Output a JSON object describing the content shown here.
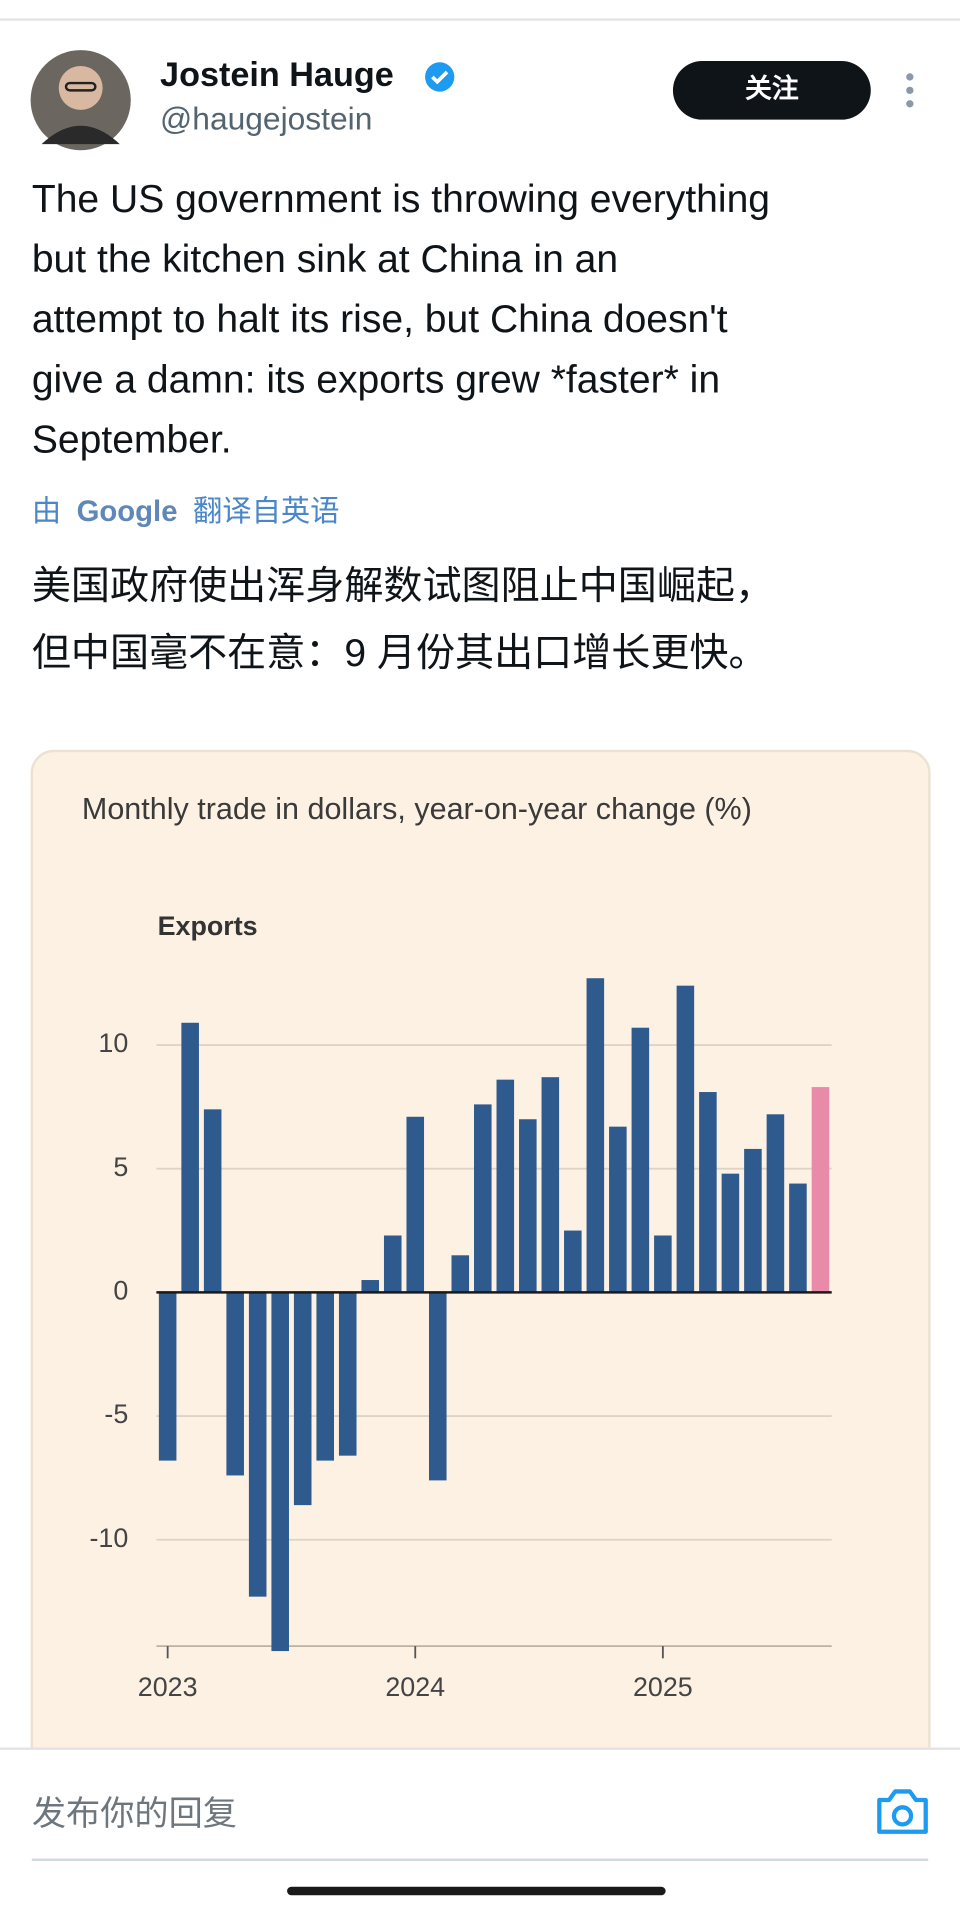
{
  "tweet": {
    "author_name": "Jostein Hauge",
    "handle": "@haugejostein",
    "follow_button": "关注",
    "text_lines": [
      "The US government is throwing everything",
      "but the kitchen sink at China in an",
      "attempt to halt its rise, but China doesn't",
      "give a damn: its exports grew *faster* in",
      "September."
    ],
    "translation_label": {
      "prefix": "由",
      "brand": "Google",
      "suffix": "翻译自英语"
    },
    "translated_lines": [
      "美国政府使出浑身解数试图阻止中国崛起，",
      "但中国毫不在意：9 月份其出口增长更快。"
    ]
  },
  "chart_data": {
    "type": "bar",
    "title": "Monthly trade in dollars, year-on-year change (%)",
    "categories": [
      "2023",
      null,
      null,
      null,
      null,
      null,
      null,
      null,
      null,
      null,
      null,
      "2024",
      null,
      null,
      null,
      null,
      null,
      null,
      null,
      null,
      null,
      null,
      "2025",
      null,
      null,
      null,
      null,
      null,
      null,
      null
    ],
    "series": [
      {
        "name": "Exports",
        "values": [
          -6.8,
          10.9,
          7.4,
          -7.4,
          -12.3,
          -14.5,
          -8.6,
          -6.8,
          -6.6,
          0.5,
          2.3,
          7.1,
          -7.6,
          1.5,
          7.6,
          8.6,
          7.0,
          8.7,
          2.5,
          12.7,
          6.7,
          10.7,
          2.3,
          12.4,
          8.1,
          4.8,
          5.8,
          7.2,
          4.4,
          8.3
        ],
        "colors": [
          "#2e5a8e",
          "#2e5a8e",
          "#2e5a8e",
          "#2e5a8e",
          "#2e5a8e",
          "#2e5a8e",
          "#2e5a8e",
          "#2e5a8e",
          "#2e5a8e",
          "#2e5a8e",
          "#2e5a8e",
          "#2e5a8e",
          "#2e5a8e",
          "#2e5a8e",
          "#2e5a8e",
          "#2e5a8e",
          "#2e5a8e",
          "#2e5a8e",
          "#2e5a8e",
          "#2e5a8e",
          "#2e5a8e",
          "#2e5a8e",
          "#2e5a8e",
          "#2e5a8e",
          "#2e5a8e",
          "#2e5a8e",
          "#2e5a8e",
          "#2e5a8e",
          "#2e5a8e",
          "#e98aa8"
        ]
      }
    ],
    "ylim": [
      -14.3,
      13
    ],
    "yticks": [
      -10,
      -5,
      0,
      5,
      10
    ],
    "grid": true
  },
  "reply_box": {
    "placeholder": "发布你的回复"
  }
}
